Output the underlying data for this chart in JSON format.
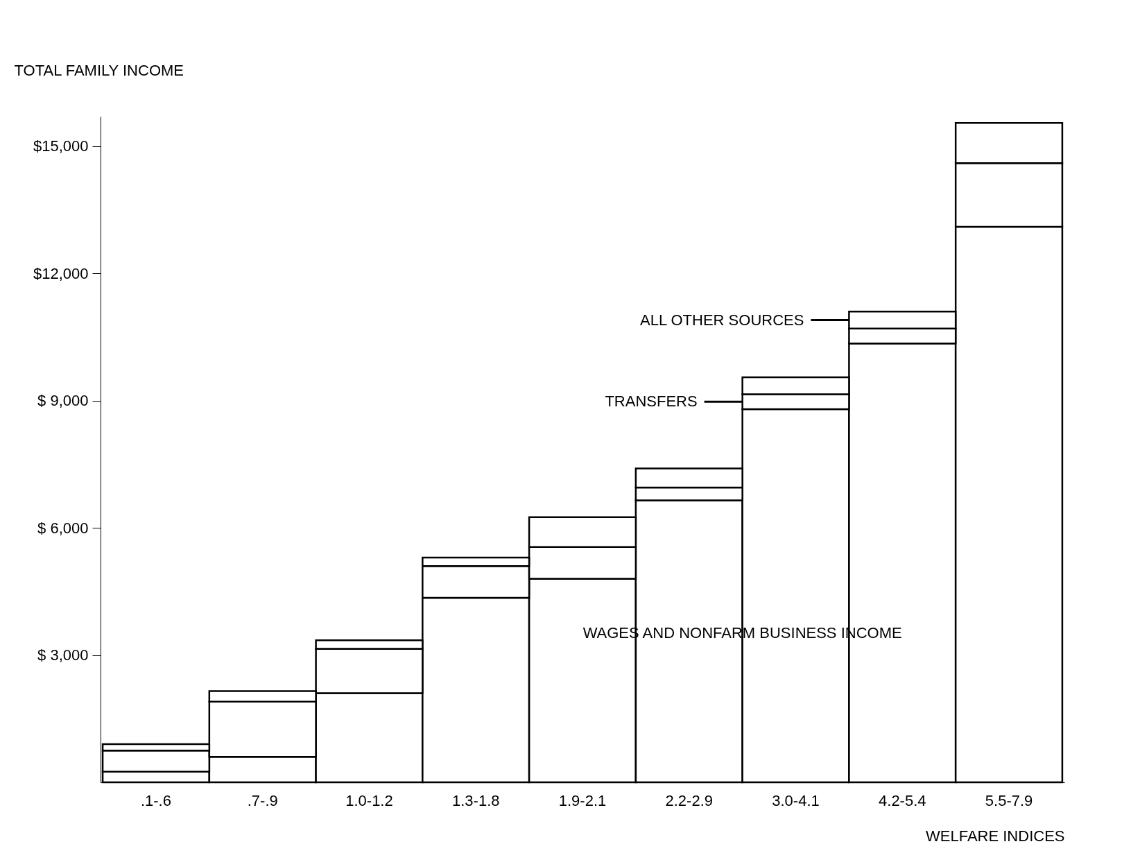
{
  "chart_data": {
    "type": "bar",
    "stacked": true,
    "xlabel": "WELFARE INDICES",
    "ylabel": "TOTAL FAMILY INCOME",
    "categories": [
      ".1-.6",
      ".7-.9",
      "1.0-1.2",
      "1.3-1.8",
      "1.9-2.1",
      "2.2-2.9",
      "3.0-4.1",
      "4.2-5.4",
      "5.5-7.9"
    ],
    "series": [
      {
        "name": "WAGES AND NONFARM BUSINESS INCOME",
        "color": "#ffffff",
        "values": [
          250,
          600,
          2100,
          4350,
          4800,
          6650,
          8800,
          10350,
          13100
        ]
      },
      {
        "name": "TRANSFERS",
        "color": "#ffffff",
        "values": [
          500,
          1300,
          1050,
          750,
          750,
          300,
          350,
          350,
          1500
        ]
      },
      {
        "name": "ALL OTHER SOURCES",
        "color": "#ffffff",
        "values": [
          150,
          250,
          200,
          200,
          700,
          450,
          400,
          400,
          950
        ]
      }
    ],
    "ylim": [
      0,
      15700
    ],
    "yticks": [
      {
        "value": 3000,
        "label": "$  3,000"
      },
      {
        "value": 6000,
        "label": "$  6,000"
      },
      {
        "value": 9000,
        "label": "$  9,000"
      },
      {
        "value": 12000,
        "label": "$12,000"
      },
      {
        "value": 15000,
        "label": "$15,000"
      }
    ],
    "legend": "right",
    "grid": false
  }
}
